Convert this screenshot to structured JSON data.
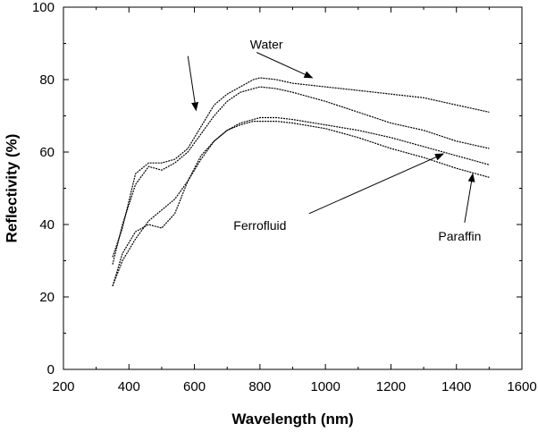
{
  "chart_data": {
    "type": "line",
    "title": "",
    "xlabel": "Wavelength (nm)",
    "ylabel": "Reflectivity (%)",
    "xlim": [
      200,
      1600
    ],
    "ylim": [
      0,
      100
    ],
    "xticks": [
      200,
      400,
      600,
      800,
      1000,
      1200,
      1400,
      1600
    ],
    "xtick_labels": [
      "200",
      "400",
      "600",
      "800",
      "1000",
      "1200",
      "1400",
      "1600"
    ],
    "yticks": [
      0,
      20,
      40,
      60,
      80,
      100
    ],
    "ytick_labels": [
      "0",
      "20",
      "40",
      "60",
      "80",
      "100"
    ],
    "grid": false,
    "legend": "none",
    "line_color": "#000000",
    "series": [
      {
        "x": [
          350,
          380,
          420,
          460,
          500,
          540,
          580,
          620,
          660,
          700,
          740,
          780,
          800,
          850,
          900,
          1000,
          1100,
          1200,
          1300,
          1400,
          1500
        ],
        "y": [
          31,
          39,
          54,
          57,
          57,
          58,
          61,
          67,
          73,
          76,
          78,
          80,
          80.5,
          80,
          79,
          78,
          77,
          76,
          75,
          73,
          71
        ]
      },
      {
        "x": [
          350,
          380,
          420,
          460,
          500,
          540,
          580,
          620,
          660,
          700,
          740,
          780,
          800,
          850,
          900,
          1000,
          1100,
          1200,
          1300,
          1400,
          1500
        ],
        "y": [
          29,
          40,
          51,
          56,
          55,
          57,
          60,
          65,
          70,
          74,
          76.5,
          77.5,
          78,
          77.5,
          76.5,
          74,
          71,
          68,
          66,
          63,
          61
        ]
      },
      {
        "x": [
          350,
          380,
          420,
          460,
          500,
          540,
          580,
          620,
          660,
          700,
          740,
          780,
          800,
          850,
          900,
          1000,
          1100,
          1200,
          1300,
          1400,
          1500
        ],
        "y": [
          23,
          30,
          36,
          41,
          44,
          47,
          52,
          58,
          63,
          66,
          68,
          69,
          69.5,
          69.5,
          69,
          67.5,
          66,
          64,
          61.5,
          59,
          56.5
        ]
      },
      {
        "x": [
          350,
          380,
          420,
          460,
          500,
          540,
          580,
          620,
          660,
          700,
          740,
          780,
          800,
          850,
          900,
          1000,
          1100,
          1200,
          1300,
          1400,
          1500
        ],
        "y": [
          23,
          32,
          38,
          40,
          39,
          43,
          52,
          59,
          63,
          66,
          67.5,
          68.5,
          68.5,
          68.5,
          68,
          66.5,
          64,
          61,
          58.5,
          55.5,
          53
        ]
      }
    ],
    "annotations": [
      {
        "text": "Water",
        "text_x": 820,
        "text_y": 88.5,
        "arrows": [
          {
            "from": [
              790,
              87.5
            ],
            "to": [
              960,
              80.5
            ]
          },
          {
            "from": [
              580,
              86.5
            ],
            "to": [
              605,
              71.5
            ]
          }
        ]
      },
      {
        "text": "Ferrofluid",
        "text_x": 800,
        "text_y": 38.5,
        "arrows": [
          {
            "from": [
              950,
              43
            ],
            "to": [
              1360,
              59.5
            ]
          }
        ]
      },
      {
        "text": "Paraffin",
        "text_x": 1410,
        "text_y": 35.5,
        "arrows": [
          {
            "from": [
              1425,
              40.5
            ],
            "to": [
              1450,
              54
            ]
          }
        ]
      }
    ]
  }
}
